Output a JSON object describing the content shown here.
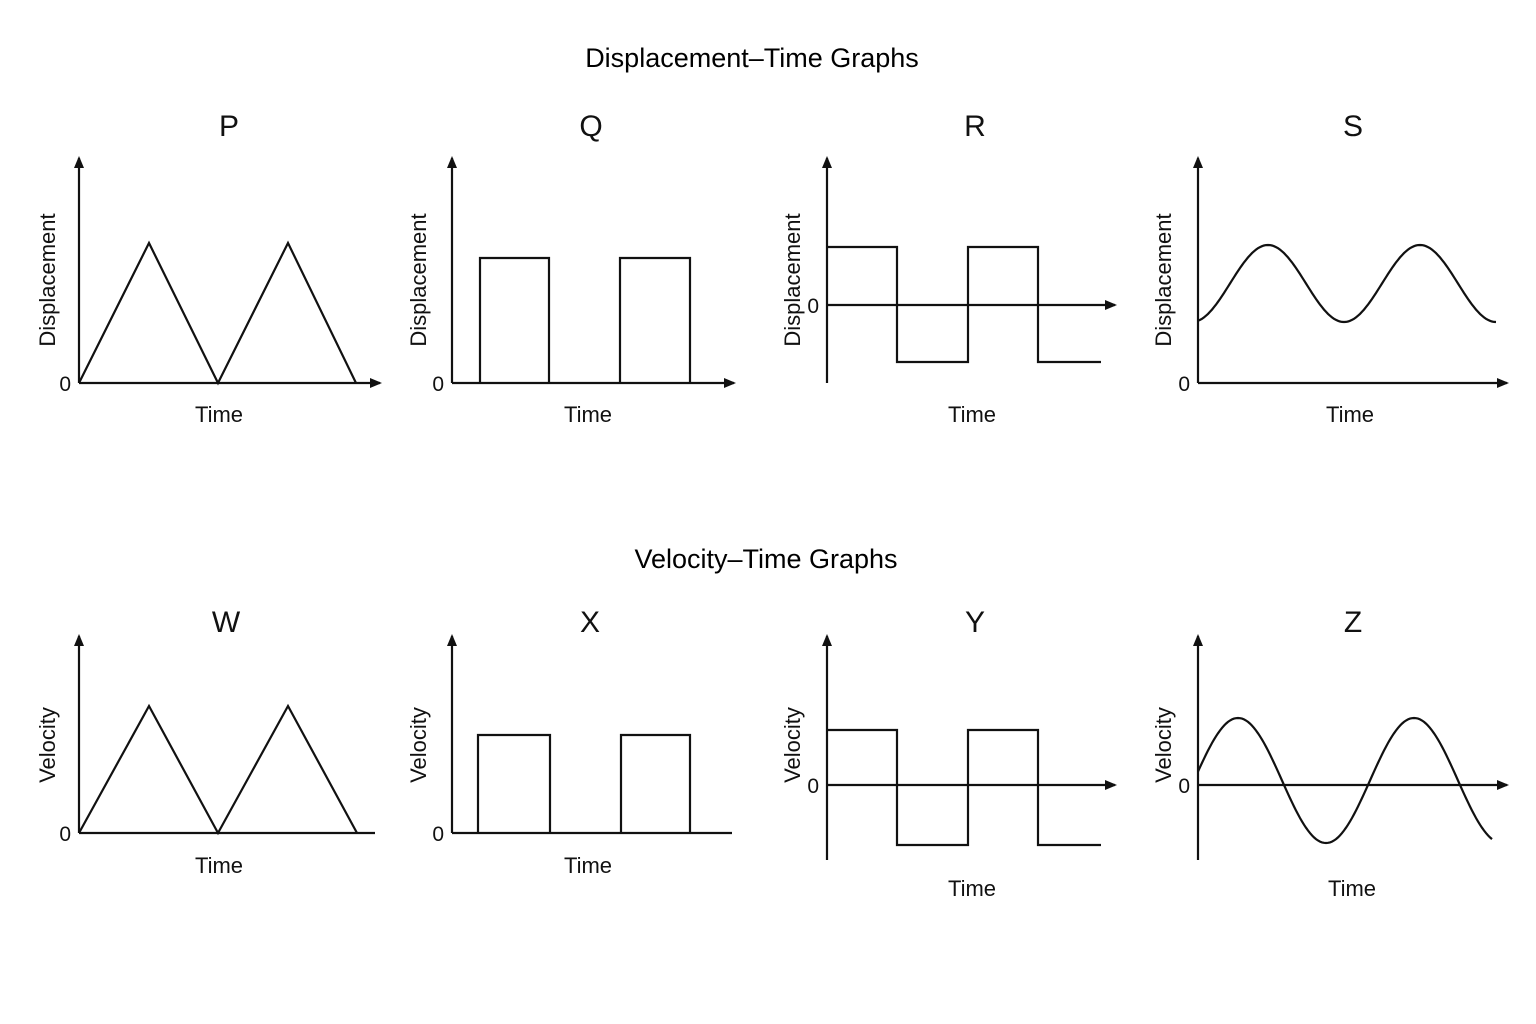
{
  "sections": [
    {
      "title": "Displacement–Time Graphs",
      "panels": [
        {
          "letter": "P",
          "ylabel": "Displacement",
          "xlabel": "Time",
          "zero": "0",
          "shape": "triangle",
          "origin": "bottom"
        },
        {
          "letter": "Q",
          "ylabel": "Displacement",
          "xlabel": "Time",
          "zero": "0",
          "shape": "rectangular-pulse",
          "origin": "bottom"
        },
        {
          "letter": "R",
          "ylabel": "Displacement",
          "xlabel": "Time",
          "zero": "0",
          "shape": "square-wave",
          "origin": "middle"
        },
        {
          "letter": "S",
          "ylabel": "Displacement",
          "xlabel": "Time",
          "zero": "0",
          "shape": "sine-offset",
          "origin": "bottom"
        }
      ]
    },
    {
      "title": "Velocity–Time Graphs",
      "panels": [
        {
          "letter": "W",
          "ylabel": "Velocity",
          "xlabel": "Time",
          "zero": "0",
          "shape": "triangle",
          "origin": "bottom"
        },
        {
          "letter": "X",
          "ylabel": "Velocity",
          "xlabel": "Time",
          "zero": "0",
          "shape": "rectangular-pulse",
          "origin": "bottom"
        },
        {
          "letter": "Y",
          "ylabel": "Velocity",
          "xlabel": "Time",
          "zero": "0",
          "shape": "square-wave",
          "origin": "middle"
        },
        {
          "letter": "Z",
          "ylabel": "Velocity",
          "xlabel": "Time",
          "zero": "0",
          "shape": "sine",
          "origin": "middle"
        }
      ]
    }
  ],
  "colors": {
    "line": "#111111",
    "background": "#ffffff"
  }
}
